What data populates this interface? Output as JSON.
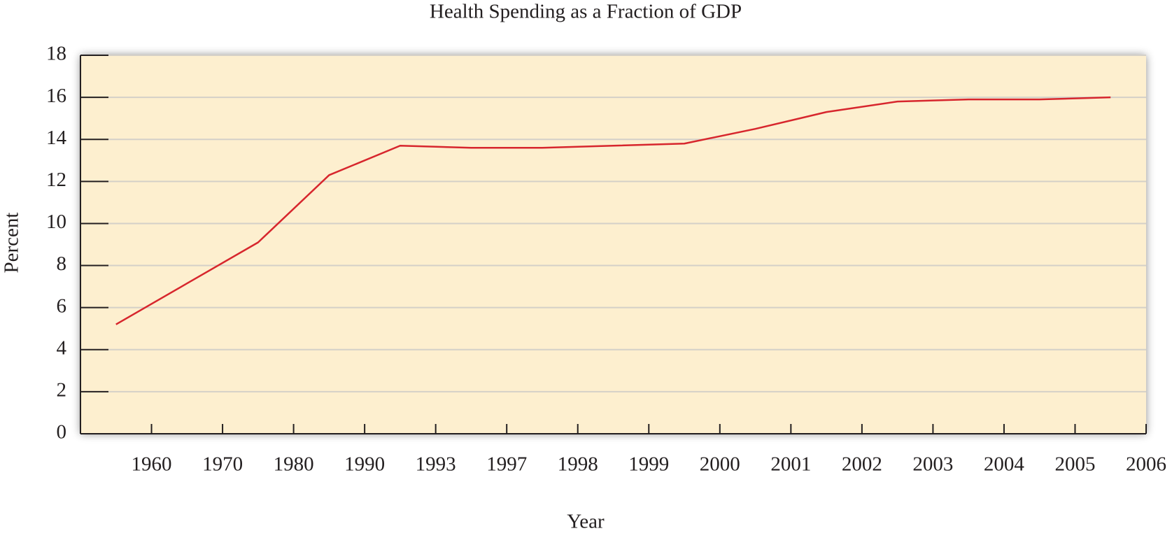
{
  "chart_data": {
    "type": "line",
    "title": "Health Spending as a Fraction of GDP",
    "x_label": "Year",
    "y_label": "Percent",
    "categories": [
      "1960",
      "1970",
      "1980",
      "1990",
      "1993",
      "1997",
      "1998",
      "1999",
      "2000",
      "2001",
      "2002",
      "2003",
      "2004",
      "2005",
      "2006"
    ],
    "values": [
      5.2,
      7.15,
      9.1,
      12.3,
      13.7,
      13.6,
      13.6,
      13.7,
      13.8,
      14.5,
      15.3,
      15.8,
      15.9,
      15.9,
      16.0
    ],
    "color": "#d7262d",
    "ylim": [
      0,
      18
    ],
    "yticks": [
      0,
      2,
      4,
      6,
      8,
      10,
      12,
      14,
      16,
      18
    ],
    "grid": true
  }
}
